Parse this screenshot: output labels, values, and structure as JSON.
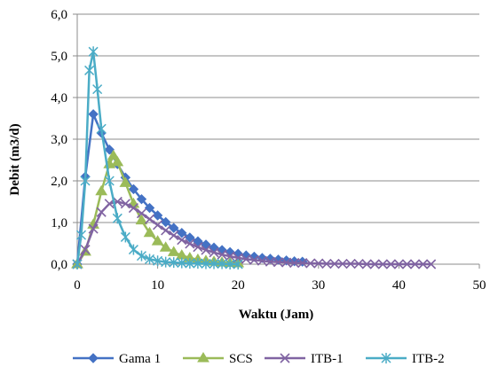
{
  "chart_data": {
    "type": "line",
    "xlabel": "Waktu (Jam)",
    "ylabel": "Debit (m3/d)",
    "xlim": [
      0,
      50
    ],
    "ylim": [
      0,
      6
    ],
    "x_ticks": [
      "0",
      "10",
      "20",
      "30",
      "40",
      "50"
    ],
    "y_ticks": [
      "0,0",
      "1,0",
      "2,0",
      "3,0",
      "4,0",
      "5,0",
      "6,0"
    ],
    "grid": "horizontal",
    "legend": "bottom",
    "series": [
      {
        "name": "Gama 1",
        "color": "#4472C4",
        "marker": "diamond",
        "points": [
          [
            0,
            0
          ],
          [
            1,
            2.1
          ],
          [
            2,
            3.6
          ],
          [
            3,
            3.15
          ],
          [
            4,
            2.75
          ],
          [
            5,
            2.4
          ],
          [
            6,
            2.08
          ],
          [
            7,
            1.8
          ],
          [
            8,
            1.56
          ],
          [
            9,
            1.35
          ],
          [
            10,
            1.17
          ],
          [
            11,
            1.01
          ],
          [
            12,
            0.87
          ],
          [
            13,
            0.75
          ],
          [
            14,
            0.64
          ],
          [
            15,
            0.55
          ],
          [
            16,
            0.47
          ],
          [
            17,
            0.4
          ],
          [
            18,
            0.34
          ],
          [
            19,
            0.29
          ],
          [
            20,
            0.25
          ],
          [
            21,
            0.21
          ],
          [
            22,
            0.18
          ],
          [
            23,
            0.15
          ],
          [
            24,
            0.13
          ],
          [
            25,
            0.11
          ],
          [
            26,
            0.09
          ],
          [
            27,
            0.07
          ],
          [
            28,
            0.06
          ]
        ]
      },
      {
        "name": "SCS",
        "color": "#9BBB59",
        "marker": "triangle",
        "points": [
          [
            0,
            0
          ],
          [
            1,
            0.3
          ],
          [
            2,
            0.95
          ],
          [
            3,
            1.75
          ],
          [
            4,
            2.4
          ],
          [
            4.5,
            2.6
          ],
          [
            5,
            2.45
          ],
          [
            6,
            1.95
          ],
          [
            7,
            1.45
          ],
          [
            8,
            1.05
          ],
          [
            9,
            0.75
          ],
          [
            10,
            0.55
          ],
          [
            11,
            0.4
          ],
          [
            12,
            0.29
          ],
          [
            13,
            0.21
          ],
          [
            14,
            0.15
          ],
          [
            15,
            0.11
          ],
          [
            16,
            0.08
          ],
          [
            17,
            0.06
          ],
          [
            18,
            0.04
          ],
          [
            19,
            0.03
          ],
          [
            20,
            0.02
          ]
        ]
      },
      {
        "name": "ITB-1",
        "color": "#8064A2",
        "marker": "x",
        "points": [
          [
            0,
            0
          ],
          [
            1,
            0.35
          ],
          [
            2,
            0.85
          ],
          [
            3,
            1.25
          ],
          [
            4,
            1.45
          ],
          [
            5,
            1.5
          ],
          [
            6,
            1.45
          ],
          [
            7,
            1.35
          ],
          [
            8,
            1.22
          ],
          [
            9,
            1.08
          ],
          [
            10,
            0.94
          ],
          [
            11,
            0.81
          ],
          [
            12,
            0.69
          ],
          [
            13,
            0.58
          ],
          [
            14,
            0.49
          ],
          [
            15,
            0.41
          ],
          [
            16,
            0.34
          ],
          [
            17,
            0.28
          ],
          [
            18,
            0.23
          ],
          [
            19,
            0.19
          ],
          [
            20,
            0.15
          ],
          [
            21,
            0.12
          ],
          [
            22,
            0.1
          ],
          [
            23,
            0.08
          ],
          [
            24,
            0.06
          ],
          [
            25,
            0.05
          ],
          [
            26,
            0.04
          ],
          [
            27,
            0.03
          ],
          [
            28,
            0.03
          ],
          [
            29,
            0.02
          ],
          [
            30,
            0.02
          ],
          [
            31,
            0.01
          ],
          [
            32,
            0.01
          ],
          [
            33,
            0.01
          ],
          [
            34,
            0.01
          ],
          [
            35,
            0.01
          ],
          [
            36,
            0
          ],
          [
            37,
            0
          ],
          [
            38,
            0
          ],
          [
            39,
            0
          ],
          [
            40,
            0
          ],
          [
            41,
            0
          ],
          [
            42,
            0
          ],
          [
            43,
            0
          ],
          [
            44,
            0
          ]
        ]
      },
      {
        "name": "ITB-2",
        "color": "#4BACC6",
        "marker": "star",
        "points": [
          [
            0,
            0
          ],
          [
            0.5,
            0.7
          ],
          [
            1,
            2.0
          ],
          [
            1.5,
            4.65
          ],
          [
            2,
            5.1
          ],
          [
            2.5,
            4.2
          ],
          [
            3,
            3.25
          ],
          [
            4,
            2.0
          ],
          [
            5,
            1.1
          ],
          [
            6,
            0.65
          ],
          [
            7,
            0.35
          ],
          [
            8,
            0.2
          ],
          [
            9,
            0.12
          ],
          [
            10,
            0.08
          ],
          [
            11,
            0.05
          ],
          [
            12,
            0.04
          ],
          [
            13,
            0.03
          ],
          [
            14,
            0.02
          ],
          [
            15,
            0.02
          ],
          [
            16,
            0.01
          ],
          [
            17,
            0.01
          ],
          [
            18,
            0.01
          ],
          [
            19,
            0
          ],
          [
            20,
            0
          ]
        ]
      }
    ]
  }
}
